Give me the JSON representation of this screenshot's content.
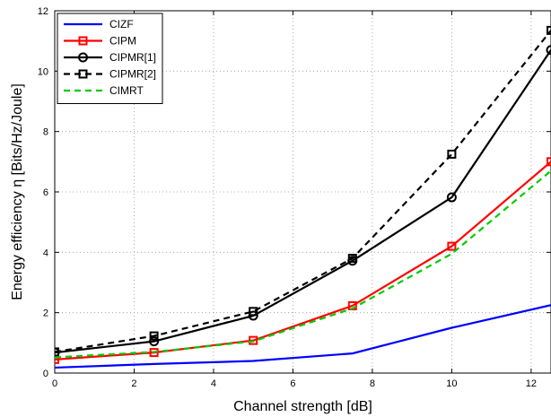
{
  "chart_data": {
    "type": "line",
    "title": "",
    "xlabel": "Channel strength [dB]",
    "ylabel": "Energy efficiency η [Bits/Hz/Joule]",
    "xlim": [
      0,
      12.5
    ],
    "ylim": [
      0,
      12
    ],
    "xticks": [
      0,
      2,
      4,
      6,
      8,
      10,
      12
    ],
    "yticks": [
      0,
      2,
      4,
      6,
      8,
      10,
      12
    ],
    "grid": true,
    "legend_position": "top-left",
    "x": [
      0,
      2.5,
      5,
      7.5,
      10,
      12.5
    ],
    "series": [
      {
        "name": "CIZF",
        "values": [
          0.18,
          0.3,
          0.4,
          0.65,
          1.5,
          2.25
        ],
        "color": "#0000ff",
        "dash": "solid",
        "marker": "none"
      },
      {
        "name": "CIPM",
        "values": [
          0.45,
          0.68,
          1.08,
          2.23,
          4.2,
          7.0
        ],
        "color": "#ff0000",
        "dash": "solid",
        "marker": "square"
      },
      {
        "name": "CIPMR[1]",
        "values": [
          0.68,
          1.05,
          1.9,
          3.72,
          5.82,
          10.7
        ],
        "color": "#000000",
        "dash": "solid",
        "marker": "circle"
      },
      {
        "name": "CIPMR[2]",
        "values": [
          0.7,
          1.23,
          2.04,
          3.8,
          7.25,
          11.35
        ],
        "color": "#000000",
        "dash": "dashed",
        "marker": "square"
      },
      {
        "name": "CIMRT",
        "values": [
          0.52,
          0.7,
          1.05,
          2.14,
          3.95,
          6.7
        ],
        "color": "#00cc00",
        "dash": "dashed",
        "marker": "none"
      }
    ]
  }
}
